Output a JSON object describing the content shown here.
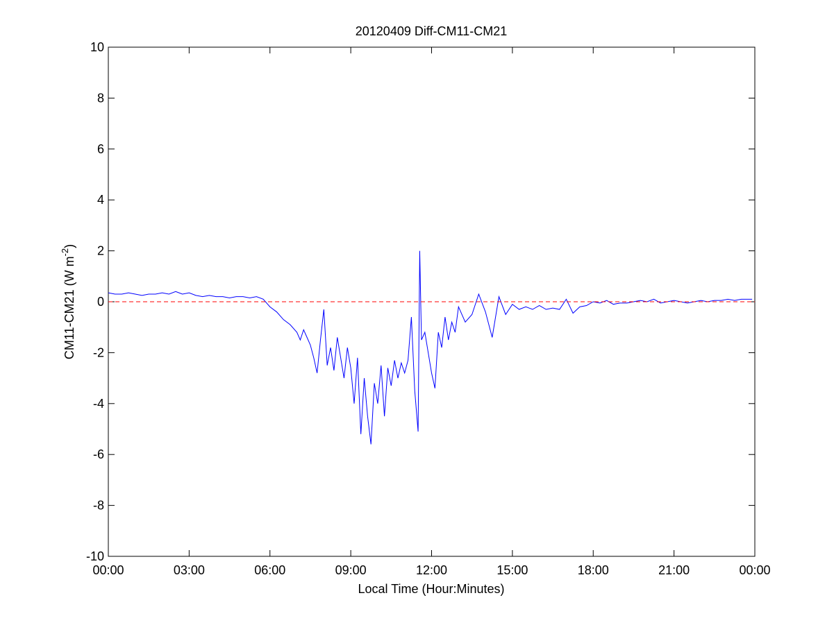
{
  "chart_data": {
    "type": "line",
    "title": "20120409 Diff-CM11-CM21",
    "xlabel": "Local Time (Hour:Minutes)",
    "ylabel": [
      "CM11-CM21 (W m",
      "-2",
      ")"
    ],
    "color": "#0000ff",
    "reference_line": {
      "value": 0,
      "color": "#ff0000",
      "style": "dashed"
    },
    "x": [
      0,
      0.25,
      0.5,
      0.75,
      1,
      1.25,
      1.5,
      1.75,
      2,
      2.25,
      2.5,
      2.75,
      3,
      3.25,
      3.5,
      3.75,
      4,
      4.25,
      4.5,
      4.75,
      5,
      5.25,
      5.5,
      5.75,
      6,
      6.25,
      6.5,
      6.75,
      7,
      7.125,
      7.25,
      7.375,
      7.5,
      7.625,
      7.75,
      7.875,
      8,
      8.125,
      8.25,
      8.375,
      8.5,
      8.625,
      8.75,
      8.875,
      9,
      9.125,
      9.25,
      9.375,
      9.5,
      9.625,
      9.75,
      9.875,
      10,
      10.125,
      10.25,
      10.375,
      10.5,
      10.625,
      10.75,
      10.875,
      11,
      11.125,
      11.25,
      11.375,
      11.5,
      11.56,
      11.625,
      11.75,
      11.875,
      12,
      12.125,
      12.25,
      12.375,
      12.5,
      12.625,
      12.75,
      12.875,
      13,
      13.25,
      13.5,
      13.75,
      14,
      14.25,
      14.5,
      14.75,
      15,
      15.25,
      15.5,
      15.75,
      16,
      16.25,
      16.5,
      16.75,
      17,
      17.25,
      17.5,
      17.75,
      18,
      18.25,
      18.5,
      18.75,
      19,
      19.25,
      19.5,
      19.75,
      20,
      20.25,
      20.5,
      20.75,
      21,
      21.25,
      21.5,
      21.75,
      22,
      22.25,
      22.5,
      22.75,
      23,
      23.25,
      23.5,
      23.75,
      23.9
    ],
    "values": [
      0.35,
      0.3,
      0.3,
      0.35,
      0.3,
      0.25,
      0.3,
      0.3,
      0.35,
      0.3,
      0.4,
      0.3,
      0.35,
      0.25,
      0.2,
      0.25,
      0.2,
      0.2,
      0.15,
      0.2,
      0.2,
      0.15,
      0.2,
      0.1,
      -0.2,
      -0.4,
      -0.7,
      -0.9,
      -1.2,
      -1.5,
      -1.1,
      -1.4,
      -1.7,
      -2.2,
      -2.8,
      -1.5,
      -0.3,
      -2.5,
      -1.8,
      -2.7,
      -1.4,
      -2.2,
      -3.0,
      -1.8,
      -2.6,
      -4.0,
      -2.2,
      -5.2,
      -3.0,
      -4.5,
      -5.6,
      -3.2,
      -4.0,
      -2.5,
      -4.5,
      -2.6,
      -3.3,
      -2.3,
      -3.0,
      -2.4,
      -2.8,
      -2.3,
      -0.6,
      -3.5,
      -5.1,
      2.0,
      -1.5,
      -1.2,
      -2.0,
      -2.8,
      -3.4,
      -1.2,
      -1.8,
      -0.6,
      -1.5,
      -0.8,
      -1.2,
      -0.2,
      -0.8,
      -0.5,
      0.3,
      -0.4,
      -1.4,
      0.2,
      -0.5,
      -0.1,
      -0.3,
      -0.2,
      -0.3,
      -0.15,
      -0.3,
      -0.25,
      -0.3,
      0.1,
      -0.45,
      -0.2,
      -0.15,
      0,
      -0.05,
      0.05,
      -0.1,
      -0.05,
      -0.05,
      0,
      0.05,
      0,
      0.1,
      -0.05,
      0,
      0.05,
      0,
      -0.05,
      0,
      0.05,
      0,
      0.05,
      0.05,
      0.1,
      0.05,
      0.1,
      0.1,
      0.1
    ],
    "xlim": [
      0,
      24
    ],
    "xticks": [
      {
        "value": 0,
        "label": "00:00"
      },
      {
        "value": 3,
        "label": "03:00"
      },
      {
        "value": 6,
        "label": "06:00"
      },
      {
        "value": 9,
        "label": "09:00"
      },
      {
        "value": 12,
        "label": "12:00"
      },
      {
        "value": 15,
        "label": "15:00"
      },
      {
        "value": 18,
        "label": "18:00"
      },
      {
        "value": 21,
        "label": "21:00"
      },
      {
        "value": 24,
        "label": "00:00"
      }
    ],
    "ylim": [
      -10,
      10
    ],
    "yticks": [
      -10,
      -8,
      -6,
      -4,
      -2,
      0,
      2,
      4,
      6,
      8,
      10
    ]
  }
}
